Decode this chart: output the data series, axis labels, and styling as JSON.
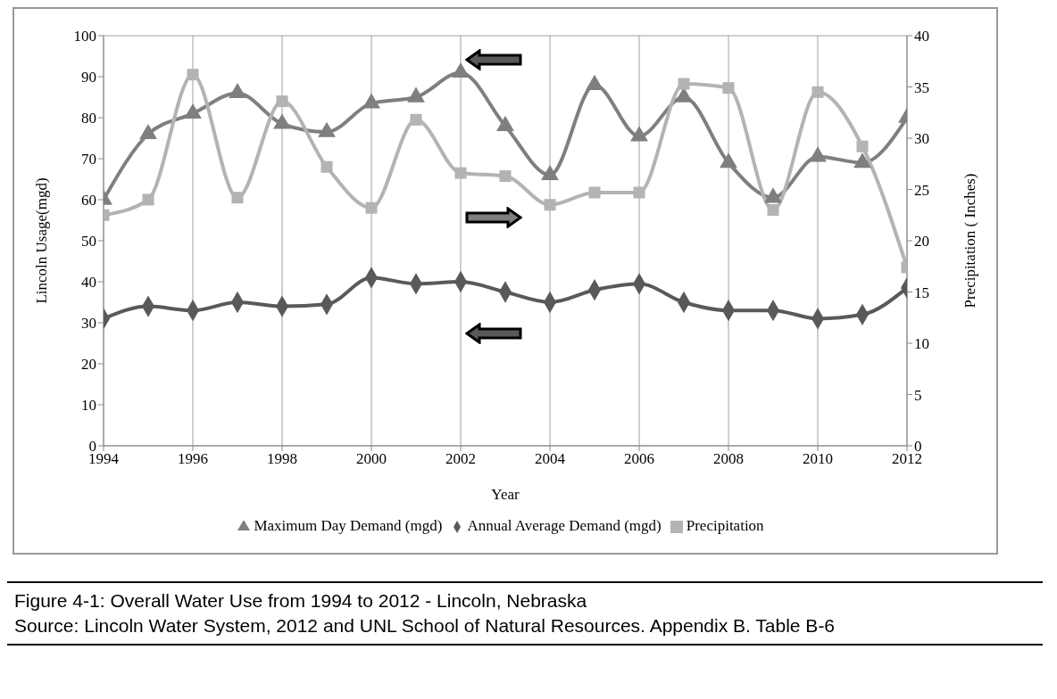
{
  "chart_data": {
    "type": "line",
    "xlabel": "Year",
    "ylabel": "Lincoln Usage(mgd)",
    "y2label": "Precipitation ( Inches)",
    "x": [
      1994,
      1995,
      1996,
      1997,
      1998,
      1999,
      2000,
      2001,
      2002,
      2003,
      2004,
      2005,
      2006,
      2007,
      2008,
      2009,
      2010,
      2011,
      2012
    ],
    "series": [
      {
        "name": "Maximum Day Demand (mgd)",
        "color": "#7f7f7f",
        "marker": "triangle",
        "values": [
          60,
          76,
          81,
          86,
          78.5,
          76.5,
          83.5,
          85,
          91,
          78,
          66,
          88,
          75.5,
          85,
          69,
          60.5,
          70.5,
          69,
          80
        ]
      },
      {
        "name": "Annual Average Demand (mgd)",
        "color": "#595959",
        "marker": "diamond",
        "values": [
          31,
          34,
          33,
          35,
          34,
          34.5,
          41,
          39.5,
          40,
          37.5,
          35,
          38,
          39.5,
          35,
          33,
          33,
          31,
          32,
          38.5
        ]
      },
      {
        "name": "Precipitation",
        "color": "#b3b3b3",
        "marker": "square",
        "axis": "y2",
        "values": [
          22.5,
          24,
          36.2,
          24.2,
          33.6,
          27.2,
          23.2,
          31.8,
          26.6,
          26.3,
          23.5,
          24.7,
          24.7,
          35.3,
          34.9,
          23,
          34.5,
          29.2,
          17.4
        ]
      }
    ],
    "xlim": [
      1994,
      2012
    ],
    "xticks": [
      1994,
      1996,
      1998,
      2000,
      2002,
      2004,
      2006,
      2008,
      2010,
      2012
    ],
    "ylim": [
      0,
      100
    ],
    "yticks": [
      0,
      10,
      20,
      30,
      40,
      50,
      60,
      70,
      80,
      90,
      100
    ],
    "y2lim": [
      0,
      40
    ],
    "y2ticks": [
      0,
      5,
      10,
      15,
      20,
      25,
      30,
      35,
      40
    ],
    "grid": true,
    "legend": "bottom",
    "line_style": "solid",
    "annotations": [
      "Figure 4-1: Overall Water Use from 1994 to 2012 - Lincoln, Nebraska",
      "Source: Lincoln Water System, 2012 and UNL School of Natural Resources. Appendix B. Table B-6"
    ]
  }
}
